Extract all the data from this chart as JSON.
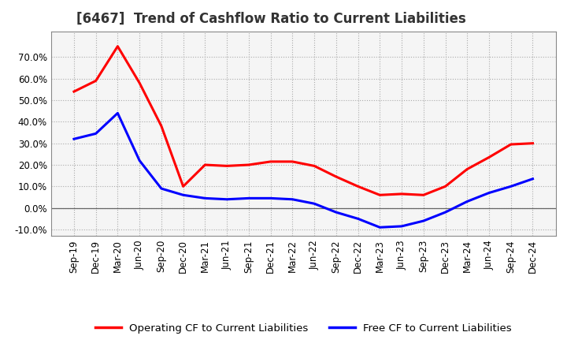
{
  "title": "[6467]  Trend of Cashflow Ratio to Current Liabilities",
  "x_labels": [
    "Sep-19",
    "Dec-19",
    "Mar-20",
    "Jun-20",
    "Sep-20",
    "Dec-20",
    "Mar-21",
    "Jun-21",
    "Sep-21",
    "Dec-21",
    "Mar-22",
    "Jun-22",
    "Sep-22",
    "Dec-22",
    "Mar-23",
    "Jun-23",
    "Sep-23",
    "Dec-23",
    "Mar-24",
    "Jun-24",
    "Sep-24",
    "Dec-24"
  ],
  "operating_cf": [
    0.54,
    0.59,
    0.75,
    0.58,
    0.38,
    0.1,
    0.2,
    0.195,
    0.2,
    0.215,
    0.215,
    0.195,
    0.145,
    0.1,
    0.06,
    0.065,
    0.06,
    0.1,
    0.18,
    0.235,
    0.295,
    0.3
  ],
  "free_cf": [
    0.32,
    0.345,
    0.44,
    0.22,
    0.09,
    0.06,
    0.045,
    0.04,
    0.045,
    0.045,
    0.04,
    0.02,
    -0.02,
    -0.05,
    -0.09,
    -0.085,
    -0.06,
    -0.02,
    0.03,
    0.07,
    0.1,
    0.135
  ],
  "operating_color": "#ff0000",
  "free_color": "#0000ff",
  "ylim": [
    -0.13,
    0.82
  ],
  "yticks": [
    -0.1,
    0.0,
    0.1,
    0.2,
    0.3,
    0.4,
    0.5,
    0.6,
    0.7
  ],
  "grid_color": "#aaaaaa",
  "legend_labels": [
    "Operating CF to Current Liabilities",
    "Free CF to Current Liabilities"
  ],
  "background_color": "#ffffff",
  "plot_bg_color": "#f5f5f5",
  "title_fontsize": 12,
  "axis_fontsize": 8.5,
  "legend_fontsize": 9.5,
  "line_width": 2.2
}
